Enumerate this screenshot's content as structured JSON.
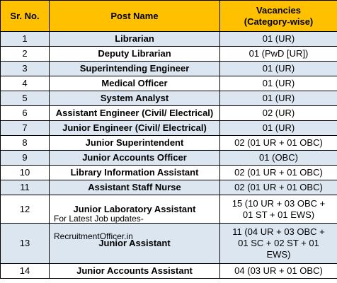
{
  "table": {
    "headers": {
      "sr": "Sr. No.",
      "post": "Post Name",
      "vac_line1": "Vacancies",
      "vac_line2": "(Category-wise)"
    },
    "rows": [
      {
        "sr": "1",
        "post": "Librarian",
        "vac": "01 (UR)"
      },
      {
        "sr": "2",
        "post": "Deputy Librarian",
        "vac": "01 (PwD [UR])"
      },
      {
        "sr": "3",
        "post": "Superintending Engineer",
        "vac": "01 (UR)"
      },
      {
        "sr": "4",
        "post": "Medical Officer",
        "vac": "01 (UR)"
      },
      {
        "sr": "5",
        "post": "System Analyst",
        "vac": "01 (UR)"
      },
      {
        "sr": "6",
        "post": "Assistant Engineer (Civil/ Electrical)",
        "vac": "02 (UR)"
      },
      {
        "sr": "7",
        "post": "Junior Engineer (Civil/ Electrical)",
        "vac": "01 (UR)"
      },
      {
        "sr": "8",
        "post": "Junior Superintendent",
        "vac": "02 (01 UR + 01 OBC)"
      },
      {
        "sr": "9",
        "post": "Junior Accounts Officer",
        "vac": "01 (OBC)"
      },
      {
        "sr": "10",
        "post": "Library Information Assistant",
        "vac": "02 (01 UR + 01 OBC)"
      },
      {
        "sr": "11",
        "post": "Assistant Staff Nurse",
        "vac": "02 (01 UR + 01 OBC)"
      },
      {
        "sr": "12",
        "post": "Junior Laboratory Assistant",
        "vac_l1": "15 (10 UR + 03 OBC +",
        "vac_l2": "01 ST + 01 EWS)"
      },
      {
        "sr": "13",
        "post": "Junior Assistant",
        "vac_l1": "11 (04 UR + 03 OBC +",
        "vac_l2": "01 SC + 02 ST + 01",
        "vac_l3": "EWS)"
      },
      {
        "sr": "14",
        "post": "Junior Accounts Assistant",
        "vac": "04 (03 UR + 01 OBC)"
      }
    ]
  },
  "watermark": {
    "line1": "For  Latest  Job  updates-",
    "line2": "RecruitmentOfficer.in"
  }
}
